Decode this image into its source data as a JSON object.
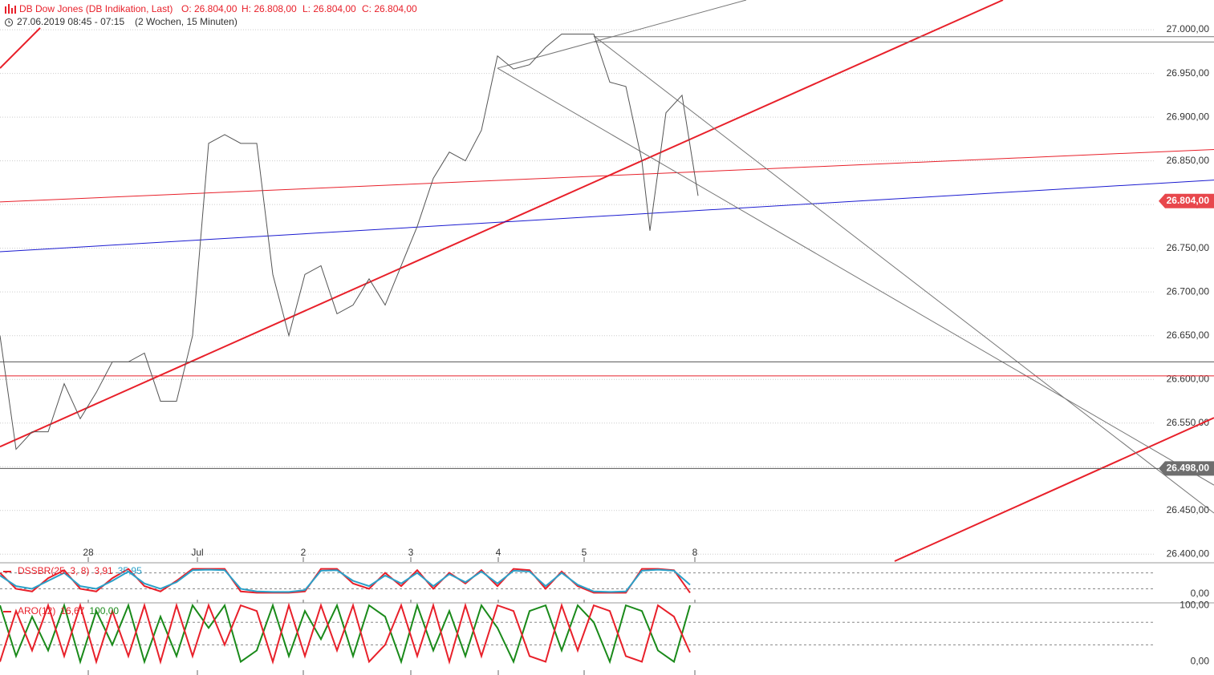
{
  "header": {
    "instrument": "DB Dow Jones (DB Indikation, Last)",
    "open": "O: 26.804,00",
    "high": "H: 26.808,00",
    "low": "L: 26.804,00",
    "close": "C: 26.804,00",
    "range": "27.06.2019 08:45 - 07:15",
    "period": "(2 Wochen, 15 Minuten)"
  },
  "chart_data": [
    {
      "type": "line",
      "xlim": [
        0,
        151.3
      ],
      "ylim": [
        26392,
        27034
      ],
      "xticks": [
        {
          "value": 11,
          "label": "28"
        },
        {
          "value": 24.6,
          "label": "Jul"
        },
        {
          "value": 37.8,
          "label": "2"
        },
        {
          "value": 51.2,
          "label": "3"
        },
        {
          "value": 62.1,
          "label": "4"
        },
        {
          "value": 72.8,
          "label": "5"
        },
        {
          "value": 86.6,
          "label": "8"
        }
      ],
      "yticks": [
        {
          "value": 26400,
          "label": "26.400,00"
        },
        {
          "value": 26450,
          "label": "26.450,00"
        },
        {
          "value": 26500,
          "label": "26.500,00"
        },
        {
          "value": 26550,
          "label": "26.550,00"
        },
        {
          "value": 26600,
          "label": "26.600,00"
        },
        {
          "value": 26650,
          "label": "26.650,00"
        },
        {
          "value": 26700,
          "label": "26.700,00"
        },
        {
          "value": 26750,
          "label": "26.750,00"
        },
        {
          "value": 26800,
          "label": "26.800,00"
        },
        {
          "value": 26850,
          "label": "26.850,00"
        },
        {
          "value": 26900,
          "label": "26.900,00"
        },
        {
          "value": 26950,
          "label": "26.950,00"
        },
        {
          "value": 27000,
          "label": "27.000,00"
        }
      ],
      "grid": true,
      "series": [
        {
          "color": "#555555",
          "x": [
            0,
            2,
            4,
            6,
            8,
            10,
            12,
            14,
            16,
            18,
            20,
            22,
            24,
            26,
            28,
            30,
            32,
            34,
            36,
            38,
            40,
            42,
            44,
            46,
            48,
            50,
            52,
            54,
            56,
            58,
            60,
            62,
            64,
            66,
            68,
            70,
            72,
            74,
            76,
            78,
            80,
            81,
            83,
            85,
            87
          ],
          "values": [
            26650,
            26520,
            26540,
            26540,
            26595,
            26555,
            26585,
            26620,
            26620,
            26630,
            26575,
            26575,
            26650,
            26870,
            26880,
            26870,
            26870,
            26720,
            26650,
            26720,
            26730,
            26675,
            26685,
            26715,
            26685,
            26730,
            26775,
            26830,
            26860,
            26850,
            26885,
            26970,
            26955,
            26960,
            26980,
            26995,
            26995,
            26995,
            26940,
            26935,
            26850,
            26770,
            26905,
            26925,
            26810
          ]
        }
      ],
      "lines": [
        {
          "color": "#e8202a",
          "width": 2,
          "x": [
            0,
            125
          ],
          "y": [
            26523,
            27034
          ]
        },
        {
          "color": "#e8202a",
          "width": 2,
          "x": [
            0,
            5
          ],
          "y": [
            26956,
            27002
          ]
        },
        {
          "color": "#e8202a",
          "width": 2,
          "x": [
            111.5,
            151.3
          ],
          "y": [
            26392,
            26556
          ]
        },
        {
          "color": "#e8202a",
          "width": 1,
          "x": [
            0,
            151.3
          ],
          "y": [
            26803,
            26863
          ]
        },
        {
          "color": "#1a1ad0",
          "width": 1,
          "x": [
            0,
            151.3
          ],
          "y": [
            26746,
            26828
          ]
        },
        {
          "color": "#777777",
          "width": 1,
          "x": [
            62,
            93
          ],
          "y": [
            26956,
            27034
          ]
        },
        {
          "color": "#777777",
          "width": 1,
          "x": [
            62,
            151.3
          ],
          "y": [
            26956,
            26479
          ]
        },
        {
          "color": "#777777",
          "width": 1,
          "x": [
            74,
            151.3
          ],
          "y": [
            26993,
            26447
          ]
        },
        {
          "color": "#777777",
          "width": 1,
          "x": [
            74,
            151.3
          ],
          "y": [
            26992,
            26992
          ]
        },
        {
          "color": "#777777",
          "width": 1,
          "x": [
            74,
            151.3
          ],
          "y": [
            26986,
            26986
          ]
        },
        {
          "color": "#555555",
          "width": 1,
          "x": [
            0,
            151.3
          ],
          "y": [
            26620,
            26620
          ]
        },
        {
          "color": "#e8202a",
          "width": 1,
          "x": [
            0,
            151.3
          ],
          "y": [
            26604,
            26604
          ]
        },
        {
          "color": "#555555",
          "width": 1,
          "x": [
            0,
            151.3
          ],
          "y": [
            26498,
            26498
          ]
        }
      ],
      "markers": [
        {
          "value": 26804,
          "label": "26.804,00",
          "color": "#e8474c"
        },
        {
          "value": 26498,
          "label": "26.498,00",
          "color": "#6e6e6e"
        }
      ]
    },
    {
      "type": "line",
      "title": "DSSBR(25, 3, 8)",
      "xlim": [
        0,
        151.3
      ],
      "ylim": [
        -27,
        115
      ],
      "yticks": [
        {
          "value": 0,
          "label": "0,00"
        }
      ],
      "levels": [
        20,
        80
      ],
      "last_values": [
        {
          "value": 3.91,
          "label": "3,91",
          "color": "#e8202a"
        },
        {
          "value": 35.95,
          "label": "35,95",
          "color": "#2aa0c8"
        }
      ],
      "series": [
        {
          "color": "#e8202a",
          "x": [
            0,
            2,
            4,
            6,
            8,
            10,
            12,
            14,
            16,
            18,
            20,
            22,
            24,
            26,
            28,
            30,
            32,
            34,
            36,
            38,
            40,
            42,
            44,
            46,
            48,
            50,
            52,
            54,
            56,
            58,
            60,
            62,
            64,
            66,
            68,
            70,
            72,
            74,
            76,
            78,
            80,
            82,
            84,
            86
          ],
          "values": [
            80,
            20,
            10,
            60,
            90,
            20,
            10,
            60,
            95,
            30,
            10,
            50,
            95,
            95,
            95,
            10,
            5,
            5,
            5,
            10,
            95,
            95,
            40,
            20,
            80,
            30,
            90,
            20,
            80,
            40,
            90,
            30,
            95,
            90,
            20,
            85,
            30,
            5,
            5,
            5,
            95,
            95,
            90,
            5
          ]
        },
        {
          "color": "#2aa0c8",
          "x": [
            0,
            2,
            4,
            6,
            8,
            10,
            12,
            14,
            16,
            18,
            20,
            22,
            24,
            26,
            28,
            30,
            32,
            34,
            36,
            38,
            40,
            42,
            44,
            46,
            48,
            50,
            52,
            54,
            56,
            58,
            60,
            62,
            64,
            66,
            68,
            70,
            72,
            74,
            76,
            78,
            80,
            82,
            84,
            86
          ],
          "values": [
            70,
            30,
            20,
            50,
            80,
            30,
            20,
            50,
            85,
            40,
            20,
            45,
            90,
            92,
            90,
            20,
            10,
            8,
            8,
            15,
            88,
            90,
            50,
            30,
            70,
            40,
            80,
            30,
            75,
            45,
            85,
            40,
            88,
            85,
            30,
            80,
            35,
            10,
            8,
            10,
            88,
            92,
            88,
            35
          ]
        }
      ]
    },
    {
      "type": "line",
      "title": "ARO(12)",
      "xlim": [
        0,
        151.3
      ],
      "ylim": [
        -23.5,
        103
      ],
      "yticks": [
        {
          "value": 100,
          "label": "100,00"
        },
        {
          "value": 0,
          "label": "0,00"
        }
      ],
      "levels": [
        30,
        70
      ],
      "last_values": [
        {
          "value": 16.67,
          "label": "16,67",
          "color": "#e8202a"
        },
        {
          "value": 100,
          "label": "100,00",
          "color": "#1a8a1a"
        }
      ],
      "series": [
        {
          "color": "#1a8a1a",
          "x": [
            0,
            2,
            4,
            6,
            8,
            10,
            12,
            14,
            16,
            18,
            20,
            22,
            24,
            26,
            28,
            30,
            32,
            34,
            36,
            38,
            40,
            42,
            44,
            46,
            48,
            50,
            52,
            54,
            56,
            58,
            60,
            62,
            64,
            66,
            68,
            70,
            72,
            74,
            76,
            78,
            80,
            82,
            84,
            86
          ],
          "values": [
            100,
            10,
            80,
            20,
            100,
            0,
            90,
            30,
            100,
            0,
            80,
            10,
            100,
            60,
            100,
            0,
            20,
            100,
            10,
            90,
            40,
            100,
            10,
            100,
            80,
            0,
            100,
            20,
            90,
            10,
            100,
            60,
            0,
            90,
            100,
            20,
            100,
            70,
            0,
            100,
            90,
            20,
            0,
            100
          ]
        },
        {
          "color": "#e8202a",
          "x": [
            0,
            2,
            4,
            6,
            8,
            10,
            12,
            14,
            16,
            18,
            20,
            22,
            24,
            26,
            28,
            30,
            32,
            34,
            36,
            38,
            40,
            42,
            44,
            46,
            48,
            50,
            52,
            54,
            56,
            58,
            60,
            62,
            64,
            66,
            68,
            70,
            72,
            74,
            76,
            78,
            80,
            82,
            84,
            86
          ],
          "values": [
            0,
            90,
            20,
            100,
            10,
            100,
            0,
            90,
            10,
            100,
            0,
            100,
            10,
            100,
            30,
            100,
            90,
            0,
            100,
            10,
            100,
            20,
            100,
            0,
            30,
            100,
            10,
            100,
            0,
            100,
            10,
            100,
            90,
            10,
            0,
            100,
            20,
            100,
            90,
            10,
            0,
            100,
            80,
            16.67
          ]
        }
      ]
    }
  ]
}
